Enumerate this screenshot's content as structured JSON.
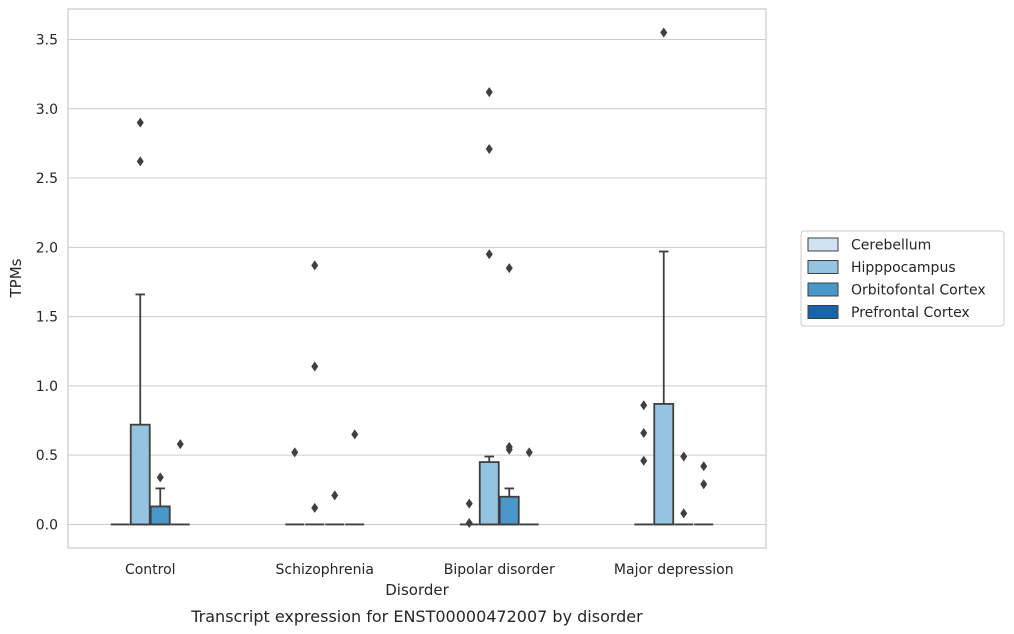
{
  "chart_data": {
    "type": "box",
    "title": "",
    "caption": "Transcript expression for ENST00000472007 by disorder",
    "xlabel": "Disorder",
    "ylabel": "TPMs",
    "ylim": [
      -0.17,
      3.72
    ],
    "yticks": [
      0.0,
      0.5,
      1.0,
      1.5,
      2.0,
      2.5,
      3.0,
      3.5
    ],
    "ytick_labels": [
      "0.0",
      "0.5",
      "1.0",
      "1.5",
      "2.0",
      "2.5",
      "3.0",
      "3.5"
    ],
    "grid": true,
    "legend_placement": "right",
    "categories": [
      "Control",
      "Schizophrenia",
      "Bipolar disorder",
      "Major depression"
    ],
    "series": [
      {
        "name": "Cerebellum",
        "color": "#d0e1f2",
        "boxes": [
          {
            "q1": 0,
            "median": 0,
            "q3": 0,
            "whislo": 0,
            "whishi": 0,
            "fliers": []
          },
          {
            "q1": 0,
            "median": 0,
            "q3": 0,
            "whislo": 0,
            "whishi": 0,
            "fliers": [
              0.52
            ]
          },
          {
            "q1": 0,
            "median": 0,
            "q3": 0,
            "whislo": 0,
            "whishi": 0,
            "fliers": [
              0.01,
              0.15
            ]
          },
          {
            "q1": 0,
            "median": 0,
            "q3": 0,
            "whislo": 0,
            "whishi": 0,
            "fliers": [
              0.46,
              0.66,
              0.86
            ]
          }
        ]
      },
      {
        "name": "Hipppocampus",
        "color": "#94c4df",
        "boxes": [
          {
            "q1": 0,
            "median": 0,
            "q3": 0.72,
            "whislo": 0,
            "whishi": 1.66,
            "fliers": [
              2.62,
              2.9
            ]
          },
          {
            "q1": 0,
            "median": 0,
            "q3": 0,
            "whislo": 0,
            "whishi": 0,
            "fliers": [
              0.12,
              1.14,
              1.87
            ]
          },
          {
            "q1": 0,
            "median": 0,
            "q3": 0.45,
            "whislo": 0,
            "whishi": 0.49,
            "fliers": [
              1.95,
              2.71,
              3.12
            ]
          },
          {
            "q1": 0,
            "median": 0,
            "q3": 0.87,
            "whislo": 0,
            "whishi": 1.97,
            "fliers": [
              3.55
            ]
          }
        ]
      },
      {
        "name": "Orbitofontal Cortex",
        "color": "#4a98c9",
        "boxes": [
          {
            "q1": 0,
            "median": 0,
            "q3": 0.13,
            "whislo": 0,
            "whishi": 0.26,
            "fliers": [
              0.34
            ]
          },
          {
            "q1": 0,
            "median": 0,
            "q3": 0,
            "whislo": 0,
            "whishi": 0,
            "fliers": [
              0.21
            ]
          },
          {
            "q1": 0,
            "median": 0,
            "q3": 0.2,
            "whislo": 0,
            "whishi": 0.26,
            "fliers": [
              0.54,
              0.56,
              1.85
            ]
          },
          {
            "q1": 0,
            "median": 0,
            "q3": 0,
            "whislo": 0,
            "whishi": 0,
            "fliers": [
              0.08,
              0.49
            ]
          }
        ]
      },
      {
        "name": "Prefrontal Cortex",
        "color": "#1764ab",
        "boxes": [
          {
            "q1": 0,
            "median": 0,
            "q3": 0,
            "whislo": 0,
            "whishi": 0,
            "fliers": [
              0.58
            ]
          },
          {
            "q1": 0,
            "median": 0,
            "q3": 0,
            "whislo": 0,
            "whishi": 0,
            "fliers": [
              0.65
            ]
          },
          {
            "q1": 0,
            "median": 0,
            "q3": 0,
            "whislo": 0,
            "whishi": 0,
            "fliers": [
              0.52
            ]
          },
          {
            "q1": 0,
            "median": 0,
            "q3": 0,
            "whislo": 0,
            "whishi": 0,
            "fliers": [
              0.29,
              0.42
            ]
          }
        ]
      }
    ]
  }
}
